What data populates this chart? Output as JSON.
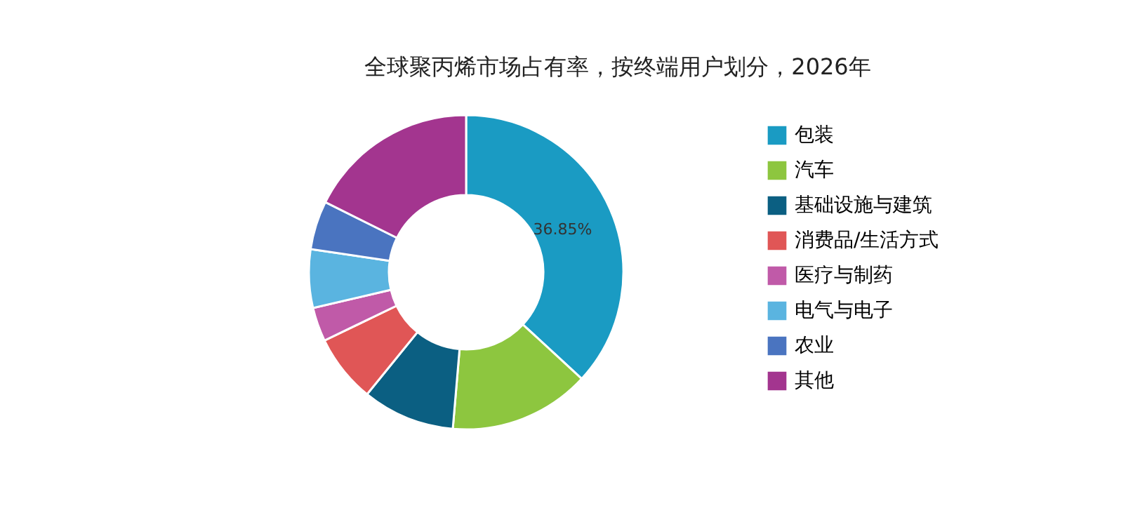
{
  "chart_data": {
    "type": "donut",
    "title": "全球聚丙烯市场占有率，按终端用户划分，2026年",
    "categories": [
      "包装",
      "汽车",
      "基础设施与建筑",
      "消费品/生活方式",
      "医疗与制药",
      "电气与电子",
      "农业",
      "其他"
    ],
    "values": [
      36.85,
      14.5,
      9.5,
      7,
      3.5,
      6,
      5,
      17.65
    ],
    "colors": [
      "#1a9bc3",
      "#8dc63f",
      "#0b5f82",
      "#e05656",
      "#c05aa8",
      "#5ab4e0",
      "#4a74c0",
      "#a3358f"
    ],
    "value_labels": [
      "36.85%",
      null,
      null,
      null,
      null,
      null,
      null,
      null
    ],
    "legend": "right"
  }
}
